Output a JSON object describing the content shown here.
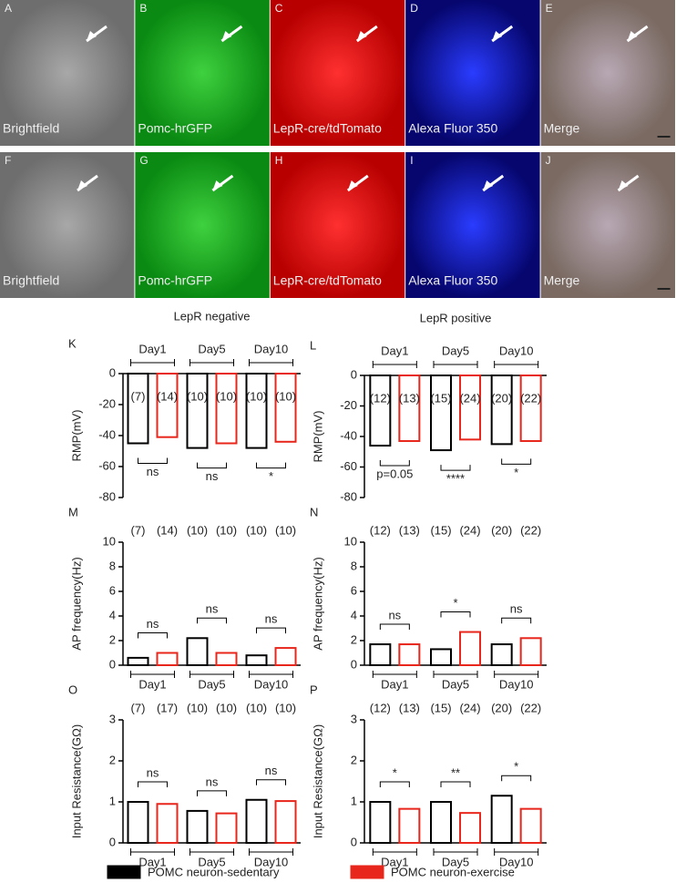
{
  "image_panels": {
    "rows": [
      [
        {
          "letter": "A",
          "label": "Brightfield"
        },
        {
          "letter": "B",
          "label": "Pomc-hrGFP"
        },
        {
          "letter": "C",
          "label": "LepR-cre/tdTomato"
        },
        {
          "letter": "D",
          "label": "Alexa Fluor 350"
        },
        {
          "letter": "E",
          "label": "Merge"
        }
      ],
      [
        {
          "letter": "F",
          "label": "Brightfield"
        },
        {
          "letter": "G",
          "label": "Pomc-hrGFP"
        },
        {
          "letter": "H",
          "label": "LepR-cre/tdTomato"
        },
        {
          "letter": "I",
          "label": "Alexa Fluor 350"
        },
        {
          "letter": "J",
          "label": "Merge"
        }
      ]
    ]
  },
  "chart_data": [
    {
      "type": "bar",
      "panel": "K",
      "title": "LepR negative",
      "y_label": "RMP(mV)",
      "categories": [
        "Day1",
        "Day5",
        "Day10"
      ],
      "series": [
        {
          "name": "POMC neuron-sedentary",
          "color": "#000000",
          "values": [
            -45,
            -48,
            -48
          ],
          "n_labels": [
            "(7)",
            "(10)",
            "(10)"
          ]
        },
        {
          "name": "POMC neuron-exercise",
          "color": "#e8261c",
          "values": [
            -41,
            -45,
            -44
          ],
          "n_labels": [
            "(14)",
            "(10)",
            "(10)"
          ]
        }
      ],
      "annotations": [
        "ns",
        "ns",
        "*"
      ],
      "ylim": [
        -80,
        0
      ],
      "yticks": [
        0,
        -20,
        -40,
        -60,
        -80
      ]
    },
    {
      "type": "bar",
      "panel": "L",
      "title": "LepR positive",
      "y_label": "RMP(mV)",
      "categories": [
        "Day1",
        "Day5",
        "Day10"
      ],
      "series": [
        {
          "color": "#000000",
          "values": [
            -46,
            -49,
            -45
          ],
          "n_labels": [
            "(12)",
            "(15)",
            "(20)"
          ]
        },
        {
          "color": "#e8261c",
          "values": [
            -43,
            -42,
            -43
          ],
          "n_labels": [
            "(13)",
            "(24)",
            "(22)"
          ]
        }
      ],
      "annotations": [
        "p=0.05",
        "****",
        "*"
      ],
      "ylim": [
        -80,
        0
      ],
      "yticks": [
        0,
        -20,
        -40,
        -60,
        -80
      ]
    },
    {
      "type": "bar",
      "panel": "M",
      "y_label": "AP frequency(Hz)",
      "categories": [
        "Day1",
        "Day5",
        "Day10"
      ],
      "series": [
        {
          "color": "#000000",
          "values": [
            0.6,
            2.2,
            0.8
          ],
          "n_labels": [
            "(7)",
            "(10)",
            "(10)"
          ]
        },
        {
          "color": "#e8261c",
          "values": [
            1.0,
            1.0,
            1.4
          ],
          "n_labels": [
            "(14)",
            "(10)",
            "(10)"
          ]
        }
      ],
      "annotations": [
        "ns",
        "ns",
        "ns"
      ],
      "ylim": [
        0,
        10
      ],
      "yticks": [
        0,
        2,
        4,
        6,
        8,
        10
      ]
    },
    {
      "type": "bar",
      "panel": "N",
      "y_label": "AP frequency(Hz)",
      "categories": [
        "Day1",
        "Day5",
        "Day10"
      ],
      "series": [
        {
          "color": "#000000",
          "values": [
            1.7,
            1.3,
            1.7
          ],
          "n_labels": [
            "(12)",
            "(15)",
            "(20)"
          ]
        },
        {
          "color": "#e8261c",
          "values": [
            1.7,
            2.7,
            2.2
          ],
          "n_labels": [
            "(13)",
            "(24)",
            "(22)"
          ]
        }
      ],
      "annotations": [
        "ns",
        "*",
        "ns"
      ],
      "ylim": [
        0,
        10
      ],
      "yticks": [
        0,
        2,
        4,
        6,
        8,
        10
      ]
    },
    {
      "type": "bar",
      "panel": "O",
      "y_label": "Input Resistance(GΩ)",
      "categories": [
        "Day1",
        "Day5",
        "Day10"
      ],
      "series": [
        {
          "color": "#000000",
          "values": [
            1.0,
            0.78,
            1.05
          ],
          "n_labels": [
            "(7)",
            "(10)",
            "(10)"
          ]
        },
        {
          "color": "#e8261c",
          "values": [
            0.95,
            0.72,
            1.02
          ],
          "n_labels": [
            "(17)",
            "(10)",
            "(10)"
          ]
        }
      ],
      "annotations": [
        "ns",
        "ns",
        "ns"
      ],
      "ylim": [
        0,
        3
      ],
      "yticks": [
        0,
        1,
        2,
        3
      ]
    },
    {
      "type": "bar",
      "panel": "P",
      "y_label": "Input Resistance(GΩ)",
      "categories": [
        "Day1",
        "Day5",
        "Day10"
      ],
      "series": [
        {
          "color": "#000000",
          "values": [
            1.0,
            1.0,
            1.15
          ],
          "n_labels": [
            "(12)",
            "(15)",
            "(20)"
          ]
        },
        {
          "color": "#e8261c",
          "values": [
            0.83,
            0.73,
            0.83
          ],
          "n_labels": [
            "(13)",
            "(24)",
            "(22)"
          ]
        }
      ],
      "annotations": [
        "*",
        "**",
        "*"
      ],
      "ylim": [
        0,
        3
      ],
      "yticks": [
        0,
        1,
        2,
        3
      ]
    }
  ]
}
